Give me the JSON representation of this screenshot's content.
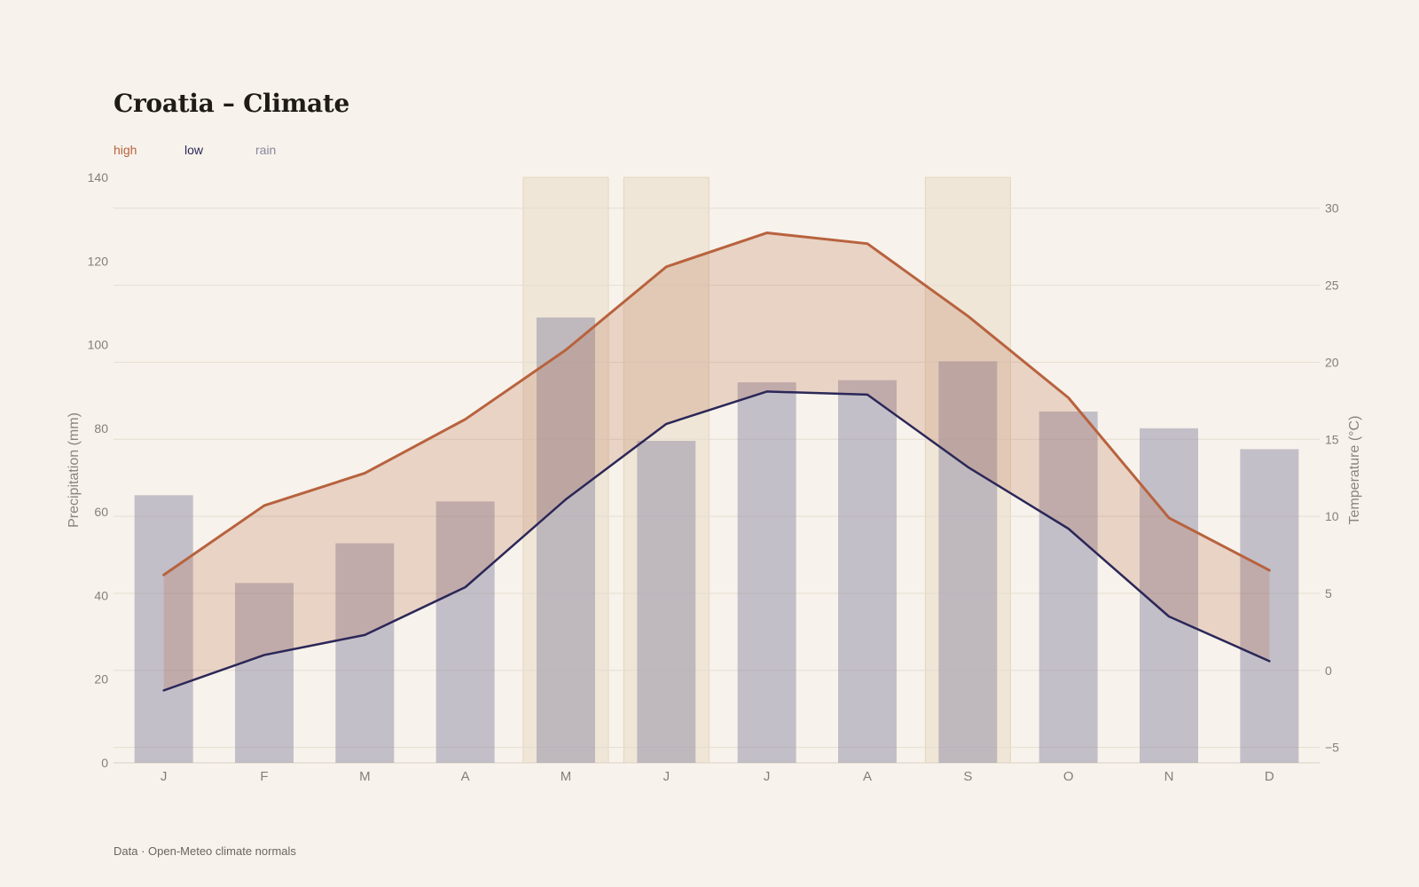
{
  "header": {
    "title": "Croatia – Climate"
  },
  "legend": {
    "high": "high",
    "low": "low",
    "rain": "rain"
  },
  "footer": {
    "source": "Data · Open-Meteo climate normals"
  },
  "colors": {
    "high": "#b8623e",
    "low": "#2b2758",
    "rain": "#8a87a0",
    "highlight": "#e4d6be",
    "grid": "#e6ddd1",
    "background": "#f7f2eb"
  },
  "chart_data": {
    "type": "bar",
    "categories": [
      "J",
      "F",
      "M",
      "A",
      "M",
      "J",
      "J",
      "A",
      "S",
      "O",
      "N",
      "D"
    ],
    "series": [
      {
        "name": "rain",
        "kind": "bar",
        "axis": "left",
        "values": [
          64,
          43,
          52.5,
          62.5,
          106.5,
          77,
          91,
          91.5,
          96,
          84,
          80,
          75
        ]
      },
      {
        "name": "high",
        "kind": "line",
        "axis": "right",
        "values": [
          6.2,
          10.7,
          12.8,
          16.3,
          20.8,
          26.2,
          28.4,
          27.7,
          23,
          17.7,
          9.9,
          6.5
        ]
      },
      {
        "name": "low",
        "kind": "line",
        "axis": "right",
        "values": [
          -1.3,
          1,
          2.3,
          5.4,
          11.1,
          16,
          18.1,
          17.9,
          13.2,
          9.2,
          3.5,
          0.6
        ]
      }
    ],
    "highlight_months": [
      4,
      5,
      8
    ],
    "ylabel_left": "Precipitation (mm)",
    "ylabel_right": "Temperature (°C)",
    "ylim_left": [
      0,
      140
    ],
    "ylim_right": [
      -6,
      32
    ],
    "yticks_left": [
      0,
      20,
      40,
      60,
      80,
      100,
      120,
      140
    ],
    "yticks_right": [
      -5,
      0,
      5,
      10,
      15,
      20,
      25,
      30
    ],
    "yticks_right_labels": [
      "−5",
      "0",
      "5",
      "10",
      "15",
      "20",
      "25",
      "30"
    ],
    "grid": true,
    "legend_position": "top-left"
  }
}
